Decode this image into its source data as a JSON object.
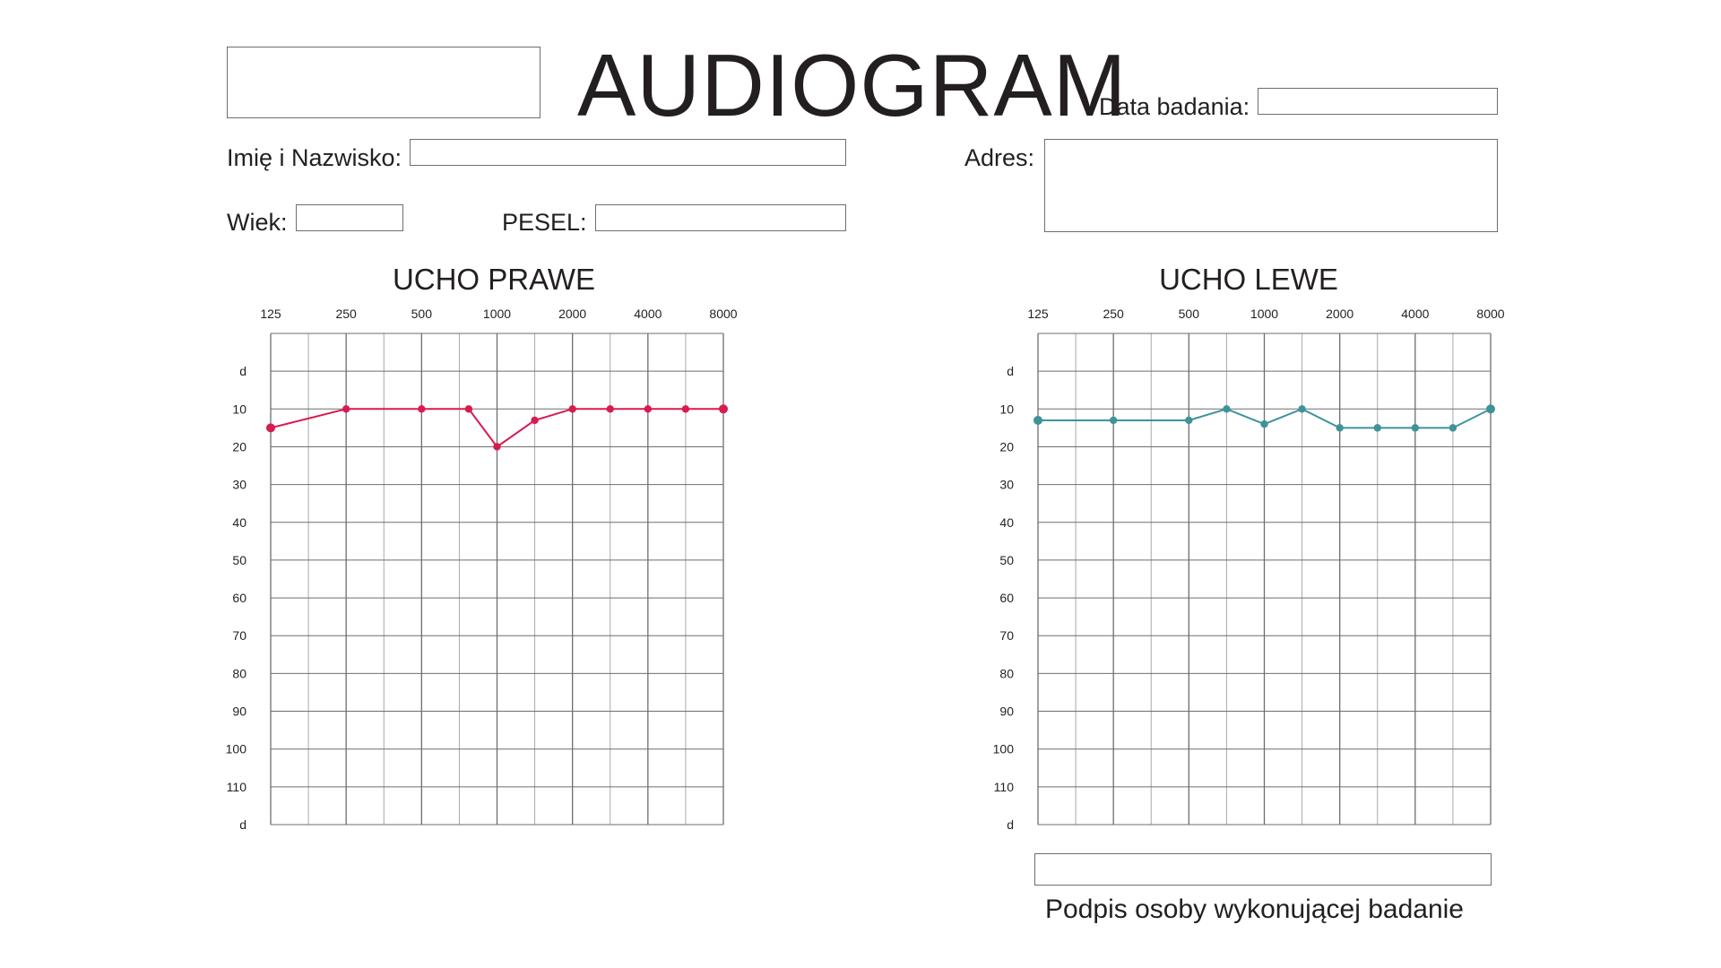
{
  "header": {
    "title": "AUDIOGRAM",
    "date_label": "Data badania:",
    "date_value": "",
    "logo_box_value": ""
  },
  "patient": {
    "name_label": "Imię i Nazwisko:",
    "name_value": "",
    "age_label": "Wiek:",
    "age_value": "",
    "pesel_label": "PESEL:",
    "pesel_value": "",
    "address_label": "Adres:",
    "address_value": ""
  },
  "signature": {
    "label": "Podpis osoby wykonującej badanie",
    "value": ""
  },
  "colors": {
    "right_ear": "#d81b4f",
    "left_ear": "#3e9399",
    "grid_major": "#6d6e71",
    "grid_minor": "#a7a9ac"
  },
  "chart_data": [
    {
      "type": "line",
      "title": "UCHO PRAWE",
      "xlabel": "",
      "ylabel": "",
      "x_tick_labels": [
        "125",
        "250",
        "500",
        "1000",
        "2000",
        "4000",
        "8000"
      ],
      "y_tick_labels": [
        "d",
        "10",
        "20",
        "30",
        "40",
        "50",
        "60",
        "70",
        "80",
        "90",
        "100",
        "110",
        "d"
      ],
      "xlim": [
        0,
        12
      ],
      "ylim": [
        -10,
        120
      ],
      "grid": true,
      "series": [
        {
          "x": [
            0,
            2,
            4,
            5.25,
            6,
            7,
            8,
            9,
            10,
            11,
            12
          ],
          "y": [
            15,
            10,
            10,
            10,
            20,
            13,
            10,
            10,
            10,
            10,
            10
          ]
        }
      ]
    },
    {
      "type": "line",
      "title": "UCHO LEWE",
      "xlabel": "",
      "ylabel": "",
      "x_tick_labels": [
        "125",
        "250",
        "500",
        "1000",
        "2000",
        "4000",
        "8000"
      ],
      "y_tick_labels": [
        "d",
        "10",
        "20",
        "30",
        "40",
        "50",
        "60",
        "70",
        "80",
        "90",
        "100",
        "110",
        "d"
      ],
      "xlim": [
        0,
        12
      ],
      "ylim": [
        -10,
        120
      ],
      "grid": true,
      "series": [
        {
          "x": [
            0,
            2,
            4,
            5,
            6,
            7,
            8,
            9,
            10,
            11,
            12
          ],
          "y": [
            13,
            13,
            13,
            10,
            14,
            10,
            15,
            15,
            15,
            15,
            10
          ]
        }
      ]
    }
  ]
}
